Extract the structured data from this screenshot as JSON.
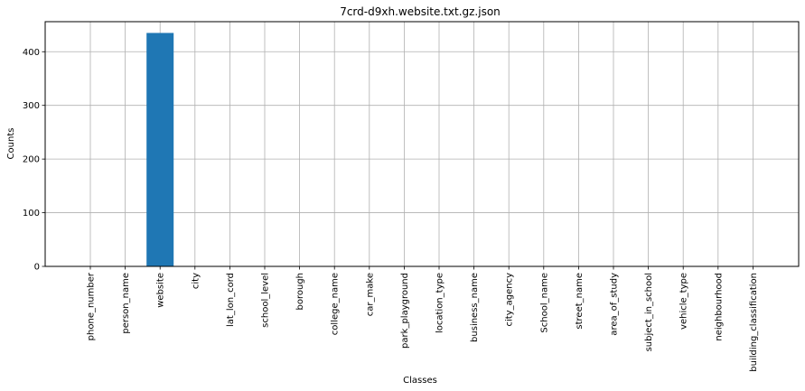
{
  "chart_data": {
    "type": "bar",
    "title": "7crd-d9xh.website.txt.gz.json",
    "xlabel": "Classes",
    "ylabel": "Counts",
    "categories": [
      "phone_number",
      "person_name",
      "website",
      "city",
      "lat_lon_cord",
      "school_level",
      "borough",
      "college_name",
      "car_make",
      "park_playground",
      "location_type",
      "business_name",
      "city_agency",
      "School_name",
      "street_name",
      "area_of_study",
      "subject_in_school",
      "vehicle_type",
      "neighbourhood",
      "building_classification"
    ],
    "values": [
      0,
      0,
      435,
      0,
      0,
      0,
      0,
      0,
      0,
      0,
      0,
      0,
      0,
      0,
      0,
      0,
      0,
      0,
      0,
      0
    ],
    "ylim": [
      0,
      456
    ],
    "yticks": [
      0,
      100,
      200,
      300,
      400
    ],
    "grid": true,
    "bar_color": "#1f77b4",
    "grid_color": "#b0b0b0"
  }
}
